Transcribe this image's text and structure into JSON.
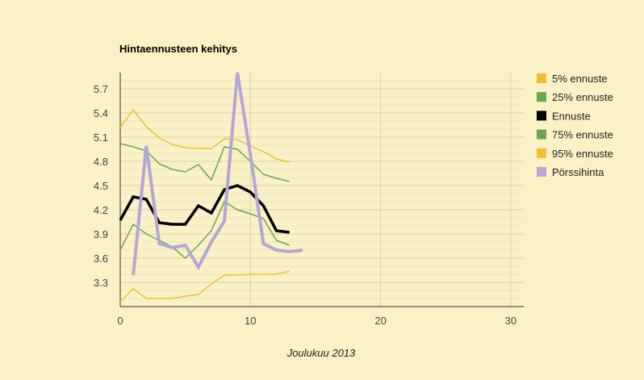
{
  "chart_data": {
    "type": "line",
    "title": "Hintaennusteen kehitys",
    "xlabel": "Joulukuu 2013",
    "ylabel": "",
    "xlim": [
      0,
      31
    ],
    "ylim": [
      3.0,
      5.9
    ],
    "x_ticks": [
      0,
      10,
      20,
      30
    ],
    "y_ticks": [
      3.3,
      3.6,
      3.9,
      4.2,
      4.5,
      4.8,
      5.1,
      5.4,
      5.7
    ],
    "y_tick_labels": [
      "3.3",
      "3.6",
      "3.9",
      "4.2",
      "4.5",
      "4.8",
      "5.1",
      "5.4",
      "5.7"
    ],
    "x_tick_labels": [
      "0",
      "10",
      "20",
      "30"
    ],
    "grid": true,
    "legend_position": "right",
    "series": [
      {
        "name": "5% ennuste",
        "color": "#f0c030",
        "width": 1.5,
        "points": [
          [
            0,
            3.06
          ],
          [
            1,
            3.22
          ],
          [
            2,
            3.1
          ],
          [
            3,
            3.1
          ],
          [
            4,
            3.1
          ],
          [
            5,
            3.13
          ],
          [
            6,
            3.15
          ],
          [
            7,
            3.28
          ],
          [
            8,
            3.39
          ],
          [
            9,
            3.39
          ],
          [
            10,
            3.4
          ],
          [
            11,
            3.4
          ],
          [
            12,
            3.4
          ],
          [
            13,
            3.44
          ]
        ]
      },
      {
        "name": "25% ennuste",
        "color": "#6aa84f",
        "width": 1.5,
        "points": [
          [
            0,
            3.7
          ],
          [
            1,
            4.02
          ],
          [
            2,
            3.9
          ],
          [
            3,
            3.82
          ],
          [
            4,
            3.74
          ],
          [
            5,
            3.6
          ],
          [
            6,
            3.76
          ],
          [
            7,
            3.94
          ],
          [
            8,
            4.3
          ],
          [
            9,
            4.2
          ],
          [
            10,
            4.15
          ],
          [
            11,
            4.09
          ],
          [
            12,
            3.82
          ],
          [
            13,
            3.76
          ]
        ]
      },
      {
        "name": "Ennuste",
        "color": "#000000",
        "width": 3.5,
        "points": [
          [
            0,
            4.07
          ],
          [
            1,
            4.36
          ],
          [
            2,
            4.33
          ],
          [
            3,
            4.04
          ],
          [
            4,
            4.02
          ],
          [
            5,
            4.02
          ],
          [
            6,
            4.25
          ],
          [
            7,
            4.16
          ],
          [
            8,
            4.45
          ],
          [
            9,
            4.5
          ],
          [
            10,
            4.42
          ],
          [
            11,
            4.25
          ],
          [
            12,
            3.94
          ],
          [
            13,
            3.92
          ]
        ]
      },
      {
        "name": "75% ennuste",
        "color": "#6aa84f",
        "width": 1.5,
        "points": [
          [
            0,
            5.02
          ],
          [
            1,
            4.98
          ],
          [
            2,
            4.93
          ],
          [
            3,
            4.77
          ],
          [
            4,
            4.7
          ],
          [
            5,
            4.67
          ],
          [
            6,
            4.76
          ],
          [
            7,
            4.57
          ],
          [
            8,
            4.98
          ],
          [
            9,
            4.95
          ],
          [
            10,
            4.8
          ],
          [
            11,
            4.64
          ],
          [
            12,
            4.59
          ],
          [
            13,
            4.55
          ]
        ]
      },
      {
        "name": "95% ennuste",
        "color": "#f0c030",
        "width": 1.5,
        "points": [
          [
            0,
            5.22
          ],
          [
            1,
            5.44
          ],
          [
            2,
            5.23
          ],
          [
            3,
            5.09
          ],
          [
            4,
            5.01
          ],
          [
            5,
            4.97
          ],
          [
            6,
            4.96
          ],
          [
            7,
            4.96
          ],
          [
            8,
            5.08
          ],
          [
            9,
            5.07
          ],
          [
            10,
            4.99
          ],
          [
            11,
            4.92
          ],
          [
            12,
            4.83
          ],
          [
            13,
            4.79
          ]
        ]
      },
      {
        "name": "Pörssihinta",
        "color": "#b4a7d6",
        "width": 4,
        "points": [
          [
            1,
            3.39
          ],
          [
            2,
            4.99
          ],
          [
            3,
            3.78
          ],
          [
            4,
            3.73
          ],
          [
            5,
            3.76
          ],
          [
            6,
            3.49
          ],
          [
            7,
            3.8
          ],
          [
            8,
            4.06
          ],
          [
            9,
            5.9
          ],
          [
            10,
            4.88
          ],
          [
            11,
            3.78
          ],
          [
            12,
            3.7
          ],
          [
            13,
            3.68
          ],
          [
            14,
            3.7
          ]
        ]
      }
    ]
  }
}
